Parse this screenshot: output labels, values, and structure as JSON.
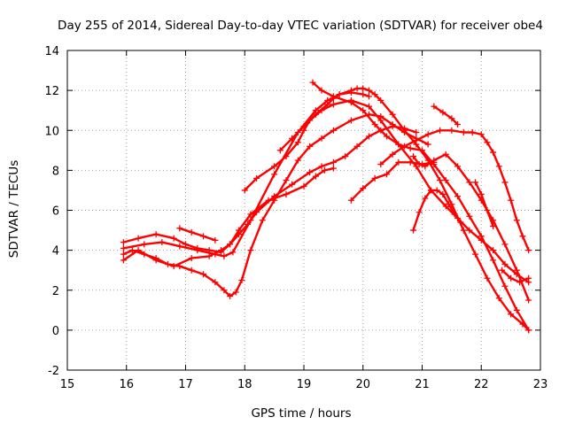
{
  "chart_data": {
    "type": "scatter",
    "title": "Day 255 of 2014, Sidereal Day-to-day VTEC variation (SDTVAR) for receiver obe4",
    "xlabel": "GPS time / hours",
    "ylabel": "SDTVAR / TECUs",
    "xlim": [
      15,
      23
    ],
    "ylim": [
      -2,
      14
    ],
    "xticks": [
      15,
      16,
      17,
      18,
      19,
      20,
      21,
      22,
      23
    ],
    "yticks": [
      -2,
      0,
      2,
      4,
      6,
      8,
      10,
      12,
      14
    ],
    "grid": true,
    "marker": "+",
    "color": "#ff0000",
    "series": [
      {
        "name": "s1",
        "x": [
          15.95,
          16.2,
          16.5,
          16.8,
          17.0,
          17.2,
          17.4,
          17.6,
          17.75,
          17.9,
          18.1,
          18.4,
          18.7,
          19.0,
          19.2,
          19.35,
          19.5
        ],
        "y": [
          4.4,
          4.6,
          4.8,
          4.6,
          4.3,
          4.1,
          4.0,
          3.9,
          4.3,
          5.0,
          5.8,
          6.5,
          6.8,
          7.2,
          7.7,
          8.0,
          8.1
        ]
      },
      {
        "name": "s2",
        "x": [
          15.95,
          16.3,
          16.6,
          16.9,
          17.2,
          17.5,
          17.65,
          17.8,
          18.1,
          18.5,
          18.9,
          19.2,
          19.4,
          19.6,
          19.8,
          20.0,
          20.1
        ],
        "y": [
          4.1,
          4.3,
          4.4,
          4.2,
          4.0,
          3.8,
          3.7,
          3.9,
          5.5,
          7.8,
          9.9,
          11.0,
          11.5,
          11.8,
          11.9,
          11.8,
          11.7
        ]
      },
      {
        "name": "s3",
        "x": [
          15.95,
          16.2,
          16.5,
          16.8,
          17.1,
          17.4,
          17.6,
          17.75,
          17.9,
          18.05,
          18.2,
          18.5,
          18.8,
          19.1,
          19.3,
          19.5,
          19.7,
          19.9,
          20.1,
          20.3,
          20.5,
          20.7,
          20.9
        ],
        "y": [
          3.5,
          4.0,
          3.5,
          3.2,
          3.6,
          3.7,
          4.0,
          4.3,
          4.8,
          5.3,
          5.9,
          6.7,
          7.3,
          7.9,
          8.2,
          8.4,
          8.7,
          9.2,
          9.7,
          10.0,
          10.2,
          10.1,
          9.9
        ]
      },
      {
        "name": "s4",
        "x": [
          15.95,
          16.1,
          16.3,
          16.5,
          16.7,
          16.9,
          17.1,
          17.3,
          17.5,
          17.65,
          17.75,
          17.85,
          17.95,
          18.1,
          18.3,
          18.5,
          18.7,
          18.9,
          19.1,
          19.3,
          19.5,
          19.8,
          20.1,
          20.3,
          20.5,
          20.7,
          20.9,
          21.1
        ],
        "y": [
          3.8,
          4.0,
          3.8,
          3.6,
          3.3,
          3.2,
          3.0,
          2.8,
          2.4,
          2.0,
          1.7,
          1.9,
          2.5,
          4.0,
          5.5,
          6.5,
          7.5,
          8.5,
          9.2,
          9.6,
          10.0,
          10.5,
          10.8,
          10.7,
          10.3,
          9.9,
          9.6,
          9.3
        ]
      },
      {
        "name": "s5",
        "x": [
          18.0,
          18.2,
          18.5,
          18.7,
          18.9,
          19.0,
          19.1,
          19.3,
          19.5,
          19.8,
          20.1,
          20.3,
          20.6,
          20.9,
          21.15,
          21.4,
          21.6,
          21.8,
          22.0,
          22.2,
          22.4,
          22.6,
          22.8
        ],
        "y": [
          7.0,
          7.6,
          8.2,
          8.7,
          9.4,
          10.0,
          10.5,
          11.0,
          11.3,
          11.5,
          11.2,
          10.5,
          9.3,
          8.2,
          7.0,
          6.2,
          5.6,
          5.0,
          4.5,
          4.0,
          3.3,
          2.8,
          2.4
        ]
      },
      {
        "name": "s6",
        "x": [
          18.6,
          18.8,
          19.0,
          19.2,
          19.4,
          19.5,
          19.6,
          19.8,
          19.9,
          20.0,
          20.1,
          20.2,
          20.3,
          20.5,
          20.7,
          20.9,
          21.1,
          21.3,
          21.5,
          21.7,
          21.9,
          22.1,
          22.3,
          22.5,
          22.7,
          22.8
        ],
        "y": [
          9.0,
          9.6,
          10.2,
          10.8,
          11.3,
          11.6,
          11.8,
          12.0,
          12.1,
          12.1,
          12.0,
          11.8,
          11.5,
          10.8,
          10.0,
          9.3,
          8.5,
          7.5,
          6.3,
          5.0,
          3.8,
          2.6,
          1.6,
          0.8,
          0.3,
          0.0
        ]
      },
      {
        "name": "s7",
        "x": [
          19.15,
          19.3,
          19.5,
          19.8,
          20.0,
          20.2,
          20.4,
          20.6,
          20.8,
          21.0,
          21.2,
          21.4,
          21.6,
          21.8,
          22.0,
          22.2,
          22.4,
          22.6,
          22.8
        ],
        "y": [
          12.4,
          12.0,
          11.7,
          11.4,
          11.0,
          10.3,
          9.7,
          9.3,
          9.1,
          9.0,
          8.3,
          7.5,
          6.7,
          5.7,
          4.7,
          3.5,
          2.2,
          1.0,
          0.0
        ]
      },
      {
        "name": "s8",
        "x": [
          20.3,
          20.5,
          20.7,
          20.9,
          21.1,
          21.3,
          21.5,
          21.7,
          21.85,
          22.0,
          22.1,
          22.2,
          22.3,
          22.4,
          22.5,
          22.6,
          22.7,
          22.8
        ],
        "y": [
          8.3,
          8.8,
          9.2,
          9.5,
          9.8,
          10.0,
          10.0,
          9.9,
          9.9,
          9.8,
          9.4,
          8.9,
          8.2,
          7.4,
          6.5,
          5.5,
          4.7,
          4.0
        ]
      },
      {
        "name": "s9",
        "x": [
          20.85,
          20.95,
          21.05,
          21.2,
          21.4,
          21.6,
          21.8,
          22.0,
          22.2,
          22.4,
          22.6,
          22.8
        ],
        "y": [
          8.7,
          8.3,
          8.2,
          8.5,
          8.8,
          8.2,
          7.4,
          6.5,
          5.5,
          4.3,
          3.0,
          1.5
        ]
      },
      {
        "name": "s10",
        "x": [
          19.8,
          20.0,
          20.2,
          20.4,
          20.6,
          20.8,
          21.0,
          21.2
        ],
        "y": [
          6.5,
          7.1,
          7.6,
          7.8,
          8.4,
          8.4,
          8.3,
          8.4
        ]
      },
      {
        "name": "s11",
        "x": [
          20.85,
          20.95,
          21.05,
          21.15,
          21.25,
          21.35,
          21.45,
          21.55,
          21.65
        ],
        "y": [
          5.0,
          5.9,
          6.6,
          7.0,
          7.0,
          6.8,
          6.3,
          5.8,
          5.4
        ]
      },
      {
        "name": "s12",
        "x": [
          21.2,
          21.35,
          21.5,
          21.6
        ],
        "y": [
          11.2,
          10.9,
          10.6,
          10.3
        ]
      },
      {
        "name": "s13",
        "x": [
          21.9,
          22.0,
          22.1,
          22.2
        ],
        "y": [
          7.4,
          6.8,
          6.0,
          5.2
        ]
      },
      {
        "name": "s14",
        "x": [
          16.9,
          17.1,
          17.3,
          17.5
        ],
        "y": [
          5.1,
          4.9,
          4.7,
          4.5
        ]
      },
      {
        "name": "s15",
        "x": [
          22.35,
          22.5,
          22.65,
          22.8
        ],
        "y": [
          3.0,
          2.6,
          2.4,
          2.6
        ]
      }
    ]
  }
}
